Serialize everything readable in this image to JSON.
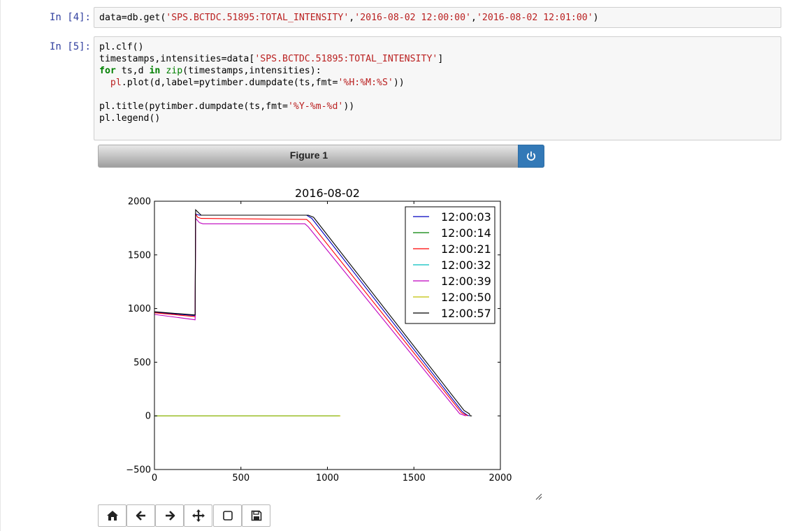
{
  "cells": [
    {
      "prompt": "In [4]:",
      "code_tokens": [
        {
          "text": "data=db.get(",
          "cls": ""
        },
        {
          "text": "'SPS.BCTDC.51895:TOTAL_INTENSITY'",
          "cls": "s"
        },
        {
          "text": ",",
          "cls": ""
        },
        {
          "text": "'2016-08-02 12:00:00'",
          "cls": "s"
        },
        {
          "text": ",",
          "cls": ""
        },
        {
          "text": "'2016-08-02 12:01:00'",
          "cls": "s"
        },
        {
          "text": ")",
          "cls": ""
        }
      ]
    },
    {
      "prompt": "In [5]:",
      "code_tokens": [
        {
          "text": "pl.clf()\ntimestamps,intensities=data[",
          "cls": ""
        },
        {
          "text": "'SPS.BCTDC.51895:TOTAL_INTENSITY'",
          "cls": "s"
        },
        {
          "text": "]\n",
          "cls": ""
        },
        {
          "text": "for",
          "cls": "k"
        },
        {
          "text": " ts,d ",
          "cls": ""
        },
        {
          "text": "in",
          "cls": "k"
        },
        {
          "text": " ",
          "cls": ""
        },
        {
          "text": "zip",
          "cls": "b"
        },
        {
          "text": "(timestamps,intensities):\n  ",
          "cls": ""
        },
        {
          "text": "pl",
          "cls": "s"
        },
        {
          "text": ".plot(d,label=pytimber.dumpdate(ts,fmt=",
          "cls": ""
        },
        {
          "text": "'%H:%M:%S'",
          "cls": "s"
        },
        {
          "text": "))\n\npl.title(pytimber.dumpdate(ts,fmt=",
          "cls": ""
        },
        {
          "text": "'%Y-%m-%d'",
          "cls": "s"
        },
        {
          "text": "))\npl.legend()",
          "cls": ""
        }
      ]
    }
  ],
  "figure": {
    "header_title": "Figure 1",
    "power_button": "power-icon"
  },
  "chart_data": {
    "type": "line",
    "title": "2016-08-02",
    "xlabel": "",
    "ylabel": "",
    "xlim": [
      0,
      2000
    ],
    "ylim": [
      -500,
      2000
    ],
    "x_ticks": [
      "0",
      "500",
      "1000",
      "1500",
      "2000"
    ],
    "y_ticks": [
      "−500",
      "0",
      "500",
      "1000",
      "1500",
      "2000"
    ],
    "grid": false,
    "legend_position": "top-right",
    "series": [
      {
        "name": "12:00:03",
        "color": "#0000bf",
        "points": [
          [
            0,
            965
          ],
          [
            235,
            935
          ],
          [
            238,
            1880
          ],
          [
            260,
            1870
          ],
          [
            880,
            1870
          ],
          [
            910,
            1840
          ],
          [
            1780,
            40
          ],
          [
            1810,
            5
          ],
          [
            1820,
            0
          ]
        ]
      },
      {
        "name": "12:00:14",
        "color": "#008000",
        "points": [
          [
            0,
            0
          ],
          [
            1070,
            0
          ]
        ]
      },
      {
        "name": "12:00:21",
        "color": "#ff0000",
        "points": [
          [
            0,
            960
          ],
          [
            235,
            925
          ],
          [
            238,
            1880
          ],
          [
            250,
            1850
          ],
          [
            270,
            1840
          ],
          [
            880,
            1830
          ],
          [
            900,
            1800
          ],
          [
            1775,
            30
          ],
          [
            1810,
            0
          ]
        ]
      },
      {
        "name": "12:00:32",
        "color": "#00bfbf",
        "points": [
          [
            0,
            0
          ],
          [
            1060,
            0
          ]
        ]
      },
      {
        "name": "12:00:39",
        "color": "#bf00bf",
        "points": [
          [
            0,
            945
          ],
          [
            235,
            895
          ],
          [
            238,
            1840
          ],
          [
            260,
            1800
          ],
          [
            280,
            1790
          ],
          [
            870,
            1790
          ],
          [
            890,
            1760
          ],
          [
            1765,
            20
          ],
          [
            1800,
            0
          ]
        ]
      },
      {
        "name": "12:00:50",
        "color": "#bfbf00",
        "points": [
          [
            0,
            0
          ],
          [
            1075,
            0
          ]
        ]
      },
      {
        "name": "12:00:57",
        "color": "#000000",
        "points": [
          [
            0,
            970
          ],
          [
            235,
            940
          ],
          [
            238,
            1920
          ],
          [
            270,
            1870
          ],
          [
            890,
            1870
          ],
          [
            920,
            1850
          ],
          [
            1790,
            50
          ],
          [
            1820,
            20
          ],
          [
            1825,
            0
          ],
          [
            1835,
            0
          ]
        ]
      }
    ]
  },
  "toolbar": [
    {
      "name": "home-button",
      "icon": "home-icon"
    },
    {
      "name": "back-button",
      "icon": "arrow-left-icon"
    },
    {
      "name": "forward-button",
      "icon": "arrow-right-icon"
    },
    {
      "name": "pan-button",
      "icon": "move-icon"
    },
    {
      "name": "zoom-rect-button",
      "icon": "square-icon"
    },
    {
      "name": "save-button",
      "icon": "floppy-disk-icon"
    }
  ]
}
